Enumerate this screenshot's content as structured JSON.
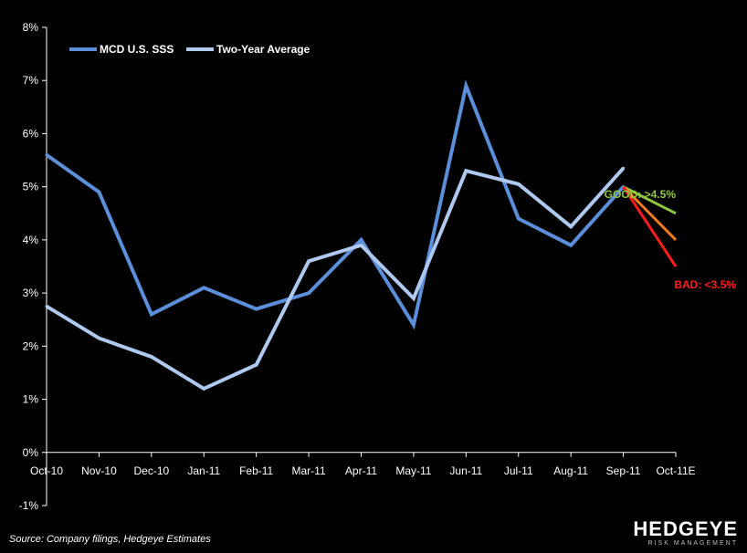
{
  "chart_data": {
    "type": "line",
    "categories": [
      "Oct-10",
      "Nov-10",
      "Dec-10",
      "Jan-11",
      "Feb-11",
      "Mar-11",
      "Apr-11",
      "May-11",
      "Jun-11",
      "Jul-11",
      "Aug-11",
      "Sep-11",
      "Oct-11E"
    ],
    "series": [
      {
        "name": "MCD U.S. SSS",
        "color": "#5b8fd9",
        "values": [
          5.6,
          4.9,
          2.6,
          3.1,
          2.7,
          3.0,
          4.0,
          2.4,
          6.9,
          4.4,
          3.9,
          5.0,
          null
        ]
      },
      {
        "name": "Two-Year Average",
        "color": "#aec8ee",
        "values": [
          2.75,
          2.15,
          1.8,
          1.2,
          1.65,
          3.6,
          3.9,
          2.9,
          5.3,
          5.05,
          4.25,
          5.35,
          null
        ]
      }
    ],
    "projections": [
      {
        "from": 5.0,
        "to": 4.5,
        "color": "#8fc73e",
        "label": "GOOD: >4.5%"
      },
      {
        "from": 5.0,
        "to": 4.0,
        "color": "#f07a1a",
        "label": ""
      },
      {
        "from": 5.0,
        "to": 3.5,
        "color": "#ff1a1a",
        "label": "BAD: <3.5%"
      }
    ],
    "y_ticks": [
      "-1%",
      "0%",
      "1%",
      "2%",
      "3%",
      "4%",
      "5%",
      "6%",
      "7%",
      "8%"
    ],
    "ylim": [
      -1,
      8
    ],
    "legend_position": "top-left",
    "title": "",
    "xlabel": "",
    "ylabel": ""
  },
  "footer": {
    "source": "Source: Company filings, Hedgeye Estimates",
    "logo_main": "HEDGEYE",
    "logo_sub": "RISK MANAGEMENT"
  }
}
